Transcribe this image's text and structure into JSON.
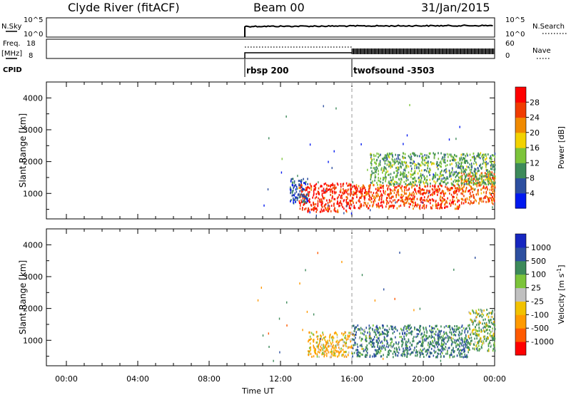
{
  "header": {
    "station": "Clyde River (fitACF)",
    "beam": "Beam 00",
    "date": "31/Jan/2015"
  },
  "top_panels": {
    "nsky_label": "N.Sky",
    "nsky_ticks": [
      "10^5",
      "10^0"
    ],
    "nsearch_label": "N.Search",
    "freq_label_line1": "Freq.",
    "freq_label_line2": "[MHz]",
    "freq_ticks": [
      "18",
      "8"
    ],
    "nave_ticks": [
      "60",
      "0"
    ],
    "nave_label": "Nave",
    "cpid_label": "CPID",
    "cpid_segments": [
      {
        "start_h": 10.0,
        "end_h": 16.0,
        "label": "rbsp 200"
      },
      {
        "start_h": 16.0,
        "end_h": 24.0,
        "label": "twofsound -3503"
      }
    ]
  },
  "colors": {
    "power_scale": [
      "#0018f0",
      "#2d4fa0",
      "#3d8a5a",
      "#7cc43a",
      "#f2d200",
      "#f08a00",
      "#f03c00",
      "#ff0000"
    ],
    "velocity_scale": [
      "#ff0000",
      "#ff5a00",
      "#ff9a00",
      "#f2c200",
      "#c0c0c0",
      "#7cc43a",
      "#3d8a5a",
      "#2d4fa0",
      "#1626c0"
    ]
  },
  "chart_data": [
    {
      "type": "heatmap",
      "title": "",
      "ylabel": "Slant Range [km]",
      "xlabel": "Time UT",
      "xlim": [
        0,
        24
      ],
      "ylim": [
        200,
        4500
      ],
      "yticks": [
        "1000",
        "2000",
        "3000",
        "4000"
      ],
      "colorbar": {
        "label": "Power [dB]",
        "ticks": [
          "4",
          "8",
          "12",
          "16",
          "20",
          "24",
          "28"
        ],
        "range": [
          0,
          32
        ]
      },
      "regions": [
        {
          "t_start": 13.0,
          "t_end": 16.0,
          "r_min": 450,
          "r_max": 1350,
          "value": 28
        },
        {
          "t_start": 16.0,
          "t_end": 22.0,
          "r_min": 550,
          "r_max": 1300,
          "value": 26
        },
        {
          "t_start": 22.0,
          "t_end": 24.0,
          "r_min": 700,
          "r_max": 1700,
          "value": 24
        },
        {
          "t_start": 17.0,
          "t_end": 24.0,
          "r_min": 1300,
          "r_max": 2300,
          "value": 12
        },
        {
          "t_start": 12.5,
          "t_end": 13.5,
          "r_min": 700,
          "r_max": 1500,
          "value": 6
        }
      ]
    },
    {
      "type": "heatmap",
      "title": "",
      "ylabel": "Slant Range [km]",
      "xlabel": "Time UT",
      "xlim": [
        0,
        24
      ],
      "ylim": [
        200,
        4500
      ],
      "yticks": [
        "1000",
        "2000",
        "3000",
        "4000"
      ],
      "xticks": [
        "00:00",
        "04:00",
        "08:00",
        "12:00",
        "16:00",
        "20:00",
        "00:00"
      ],
      "colorbar": {
        "label": "Velocity [m s",
        "label_superscript": "-1",
        "label_end": "]",
        "ticks": [
          "1000",
          "500",
          "100",
          "25",
          "-25",
          "-100",
          "-500",
          "-1000"
        ],
        "range": [
          -1000,
          1000
        ]
      },
      "regions": [
        {
          "t_start": 13.5,
          "t_end": 16.0,
          "r_min": 500,
          "r_max": 1300,
          "value": -150
        },
        {
          "t_start": 16.0,
          "t_end": 22.5,
          "r_min": 500,
          "r_max": 1500,
          "value": 400
        },
        {
          "t_start": 22.5,
          "t_end": 24.0,
          "r_min": 700,
          "r_max": 2000,
          "value": 100
        }
      ]
    }
  ]
}
